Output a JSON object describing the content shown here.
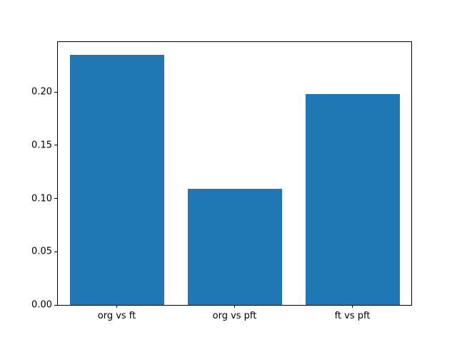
{
  "chart_data": {
    "type": "bar",
    "categories": [
      "org vs ft",
      "org vs pft",
      "ft vs pft"
    ],
    "values": [
      0.235,
      0.109,
      0.198
    ],
    "title": "",
    "xlabel": "",
    "ylabel": "",
    "ylim": [
      0,
      0.247
    ],
    "yticks": [
      0.0,
      0.05,
      0.1,
      0.15,
      0.2
    ],
    "ytick_format_decimals": 2,
    "bar_color": "#1f77b4",
    "bar_width_fraction": 0.8,
    "grid": false,
    "legend": null,
    "background_color": "#ffffff",
    "axis_color": "#000000"
  }
}
